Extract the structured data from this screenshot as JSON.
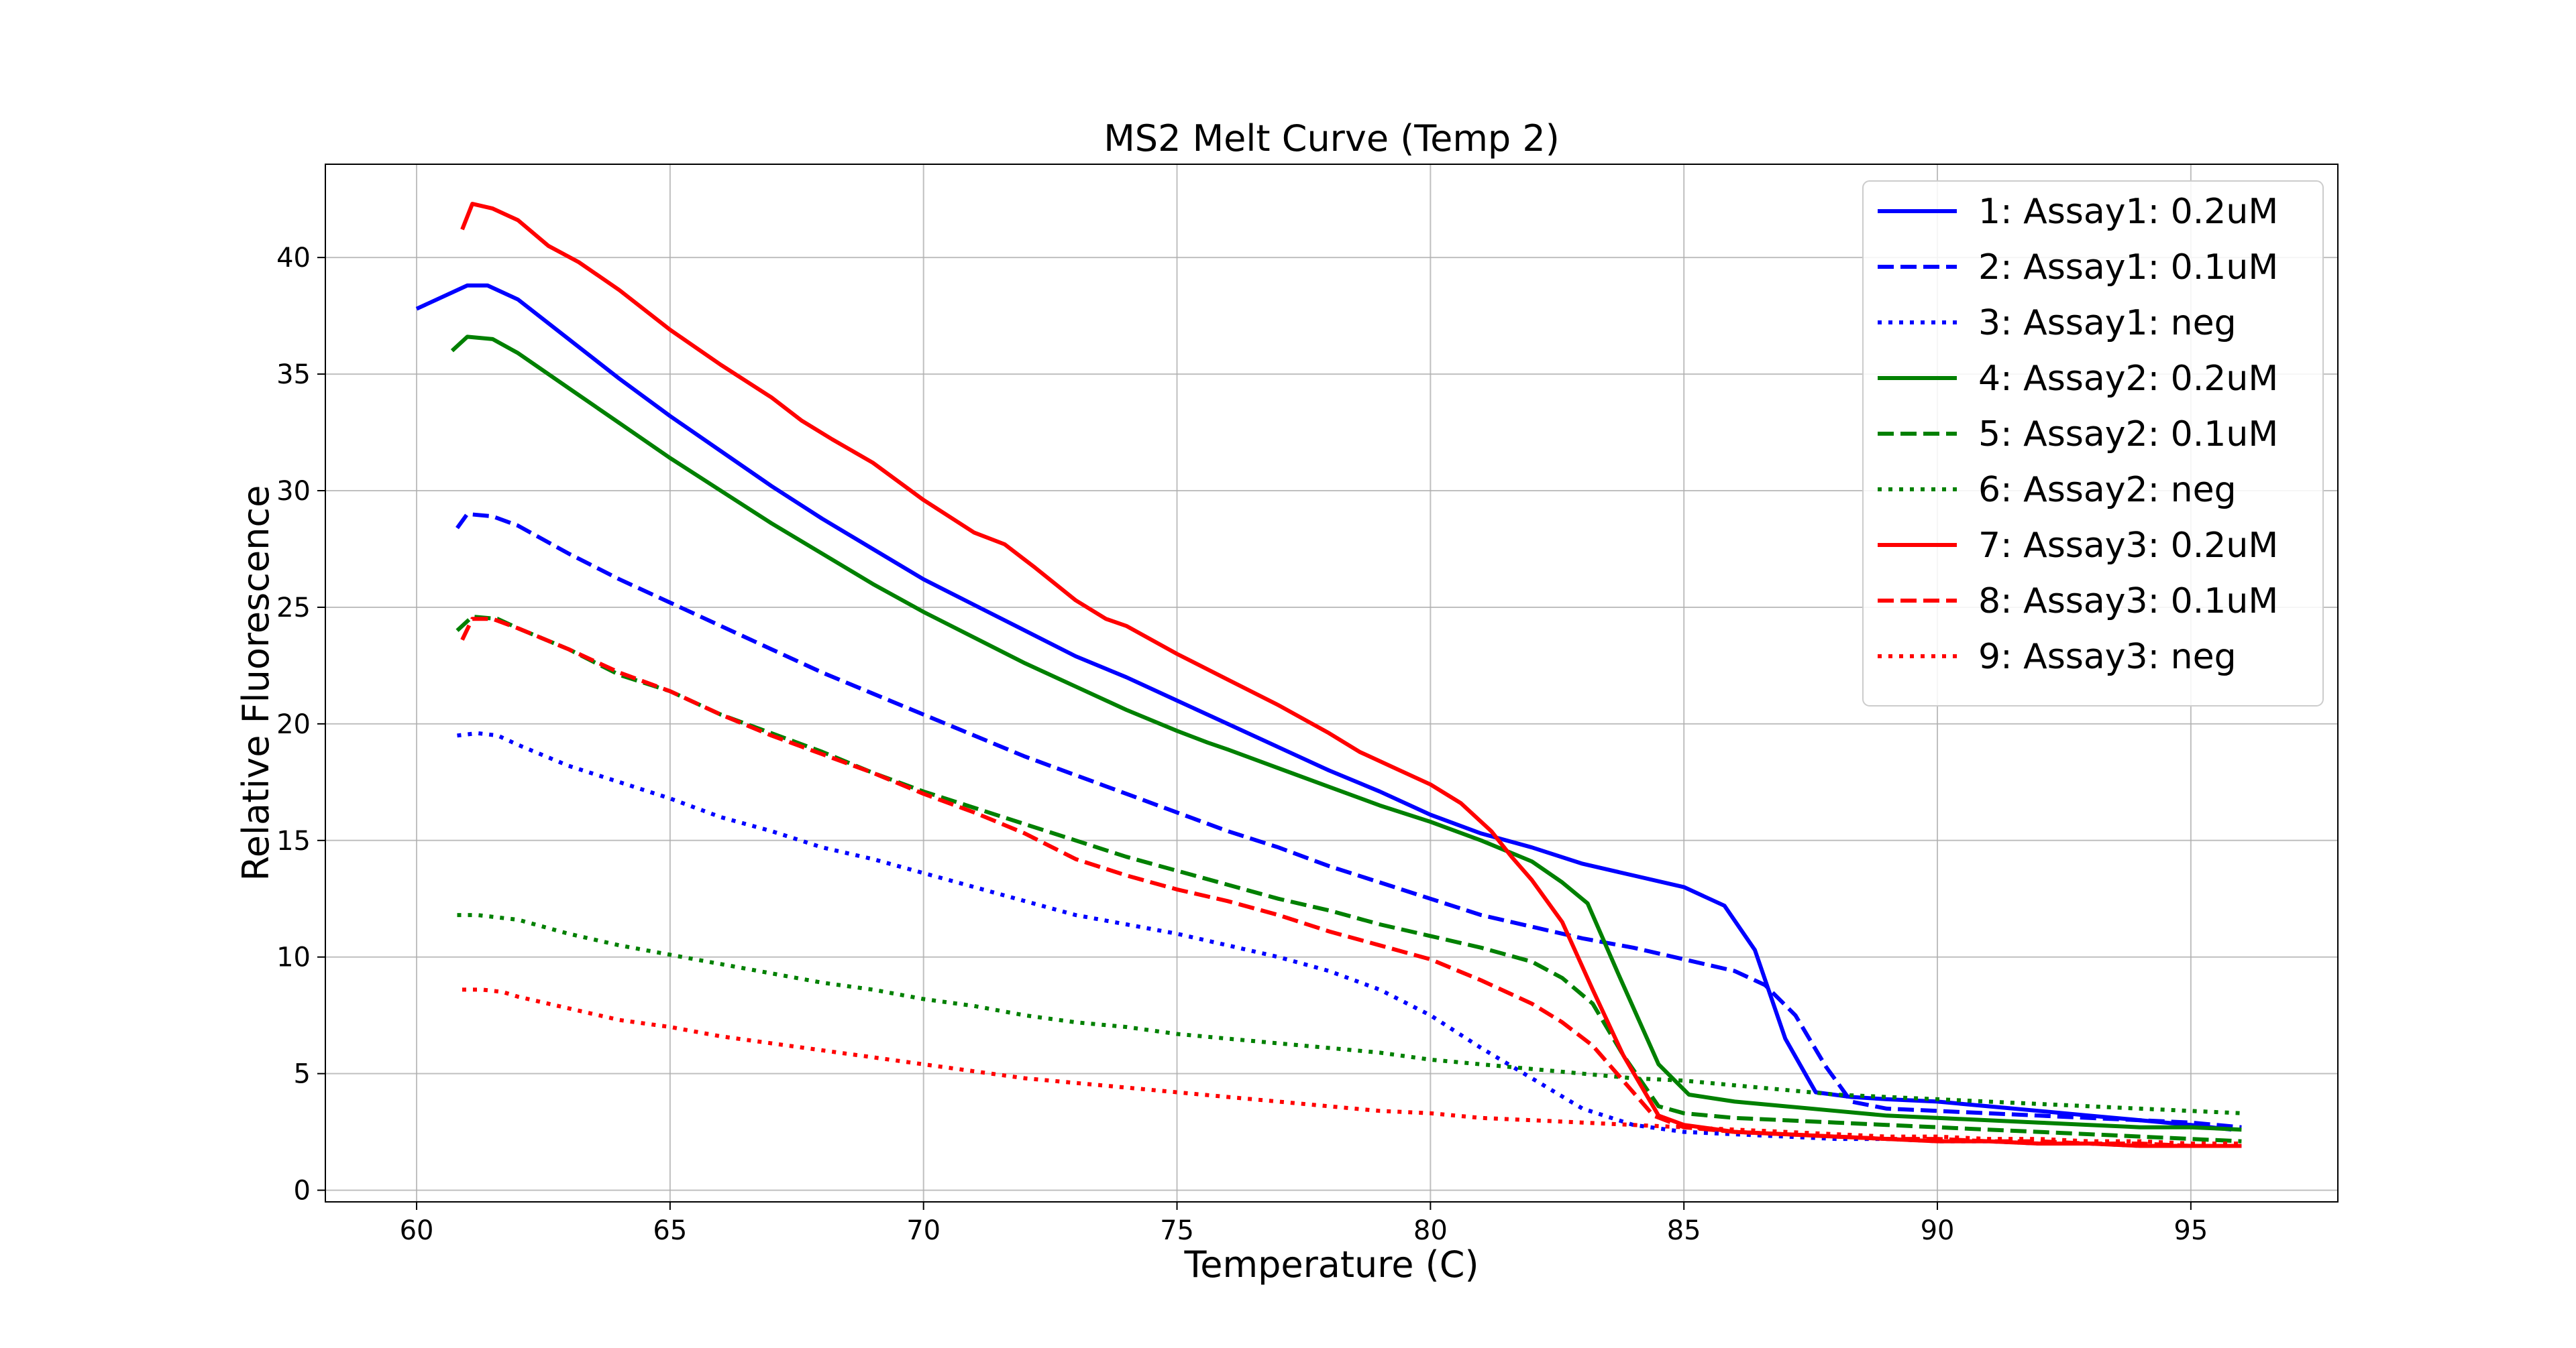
{
  "chart_data": {
    "type": "line",
    "title": "MS2 Melt Curve (Temp 2)",
    "xlabel": "Temperature (C)",
    "ylabel": "Relative Fluorescence",
    "xlim": [
      58.2,
      97.9
    ],
    "ylim": [
      -0.5,
      44.0
    ],
    "xticks": [
      60,
      65,
      70,
      75,
      80,
      85,
      90,
      95
    ],
    "yticks": [
      0,
      5,
      10,
      15,
      20,
      25,
      30,
      35,
      40
    ],
    "grid": true,
    "legend_position": "top-right",
    "series": [
      {
        "name": "1: Assay1: 0.2uM",
        "color": "#0000ff",
        "dash": "solid",
        "x": [
          60.0,
          61.0,
          61.4,
          62.0,
          63.0,
          64.0,
          65.0,
          66.0,
          67.0,
          68.0,
          69.0,
          70.0,
          71.0,
          72.0,
          73.0,
          74.0,
          75.0,
          76.0,
          77.0,
          78.0,
          79.0,
          80.0,
          81.0,
          82.0,
          83.0,
          84.0,
          85.0,
          85.8,
          86.4,
          87.0,
          87.6,
          88.3,
          89.0,
          90.0,
          91.0,
          92.0,
          93.0,
          94.0,
          95.0,
          95.8
        ],
        "y": [
          37.8,
          38.8,
          38.8,
          38.2,
          36.5,
          34.8,
          33.2,
          31.7,
          30.2,
          28.8,
          27.5,
          26.2,
          25.1,
          24.0,
          22.9,
          22.0,
          21.0,
          20.0,
          19.0,
          18.0,
          17.1,
          16.1,
          15.3,
          14.7,
          14.0,
          13.5,
          13.0,
          12.2,
          10.3,
          6.5,
          4.2,
          4.0,
          3.9,
          3.8,
          3.6,
          3.4,
          3.2,
          3.0,
          2.8,
          2.6
        ]
      },
      {
        "name": "2: Assay1: 0.1uM",
        "color": "#0000ff",
        "dash": "dashed",
        "x": [
          60.8,
          61.0,
          61.5,
          62.0,
          63.0,
          64.0,
          65.0,
          66.0,
          67.0,
          68.0,
          69.0,
          70.0,
          71.0,
          72.0,
          73.0,
          74.0,
          75.0,
          76.0,
          77.0,
          78.0,
          79.0,
          80.0,
          81.0,
          82.0,
          83.0,
          84.0,
          85.0,
          86.0,
          86.6,
          87.2,
          87.8,
          88.3,
          89.0,
          90.0,
          91.0,
          92.0,
          93.0,
          94.0,
          95.0,
          96.0
        ],
        "y": [
          28.4,
          29.0,
          28.9,
          28.5,
          27.3,
          26.2,
          25.2,
          24.2,
          23.2,
          22.2,
          21.3,
          20.4,
          19.5,
          18.6,
          17.8,
          17.0,
          16.2,
          15.4,
          14.7,
          13.9,
          13.2,
          12.5,
          11.8,
          11.3,
          10.8,
          10.4,
          9.9,
          9.4,
          8.8,
          7.5,
          5.3,
          3.8,
          3.5,
          3.4,
          3.3,
          3.2,
          3.1,
          3.0,
          2.9,
          2.7
        ]
      },
      {
        "name": "3: Assay1: neg",
        "color": "#0000ff",
        "dash": "dotted",
        "x": [
          60.8,
          61.2,
          61.6,
          62.0,
          63.0,
          64.0,
          65.0,
          66.0,
          67.0,
          68.0,
          69.0,
          70.0,
          71.0,
          72.0,
          73.0,
          74.0,
          75.0,
          76.0,
          77.0,
          78.0,
          79.0,
          80.0,
          81.0,
          82.0,
          83.0,
          84.0,
          85.0,
          86.0,
          87.0,
          88.0,
          89.0,
          90.0,
          91.0,
          92.0,
          93.0,
          94.0,
          95.0,
          96.0
        ],
        "y": [
          19.5,
          19.6,
          19.5,
          19.1,
          18.2,
          17.5,
          16.8,
          16.0,
          15.4,
          14.7,
          14.2,
          13.6,
          13.0,
          12.4,
          11.8,
          11.4,
          11.0,
          10.5,
          10.0,
          9.4,
          8.6,
          7.5,
          6.1,
          4.8,
          3.5,
          2.8,
          2.5,
          2.4,
          2.3,
          2.2,
          2.2,
          2.1,
          2.1,
          2.0,
          2.0,
          1.9,
          1.9,
          1.9
        ]
      },
      {
        "name": "4: Assay2: 0.2uM",
        "color": "#008000",
        "dash": "solid",
        "x": [
          60.7,
          61.0,
          61.5,
          62.0,
          63.0,
          64.0,
          65.0,
          66.0,
          67.0,
          68.0,
          69.0,
          70.0,
          71.0,
          72.0,
          73.0,
          74.0,
          75.0,
          75.6,
          76.0,
          77.0,
          78.0,
          79.0,
          80.0,
          81.0,
          82.0,
          82.6,
          83.1,
          83.7,
          84.5,
          85.1,
          86.0,
          87.0,
          88.0,
          89.0,
          90.0,
          91.0,
          92.0,
          93.0,
          94.0,
          95.0,
          96.0
        ],
        "y": [
          36.0,
          36.6,
          36.5,
          35.9,
          34.4,
          32.9,
          31.4,
          30.0,
          28.6,
          27.3,
          26.0,
          24.8,
          23.7,
          22.6,
          21.6,
          20.6,
          19.7,
          19.2,
          18.9,
          18.1,
          17.3,
          16.5,
          15.8,
          15.0,
          14.1,
          13.2,
          12.3,
          9.3,
          5.4,
          4.1,
          3.8,
          3.6,
          3.4,
          3.2,
          3.1,
          3.0,
          2.9,
          2.8,
          2.7,
          2.7,
          2.6
        ]
      },
      {
        "name": "5: Assay2: 0.1uM",
        "color": "#008000",
        "dash": "dashed",
        "x": [
          60.8,
          61.1,
          61.6,
          62.0,
          63.0,
          64.0,
          65.0,
          66.0,
          67.0,
          68.0,
          69.0,
          70.0,
          71.0,
          72.0,
          73.0,
          74.0,
          75.0,
          76.0,
          77.0,
          78.0,
          79.0,
          80.0,
          81.0,
          82.0,
          82.6,
          83.2,
          83.8,
          84.5,
          85.0,
          86.0,
          87.0,
          88.0,
          89.0,
          90.0,
          91.0,
          92.0,
          93.0,
          94.0,
          95.0,
          96.0
        ],
        "y": [
          24.0,
          24.6,
          24.5,
          24.1,
          23.2,
          22.1,
          21.4,
          20.4,
          19.6,
          18.8,
          17.9,
          17.1,
          16.4,
          15.7,
          15.0,
          14.3,
          13.7,
          13.1,
          12.5,
          12.0,
          11.4,
          10.9,
          10.4,
          9.8,
          9.1,
          8.0,
          5.8,
          3.6,
          3.3,
          3.1,
          3.0,
          2.9,
          2.8,
          2.7,
          2.6,
          2.5,
          2.4,
          2.3,
          2.2,
          2.1
        ]
      },
      {
        "name": "6: Assay2: neg",
        "color": "#008000",
        "dash": "dotted",
        "x": [
          60.8,
          61.2,
          61.6,
          62.0,
          63.0,
          64.0,
          65.0,
          66.0,
          67.0,
          68.0,
          69.0,
          70.0,
          71.0,
          72.0,
          73.0,
          74.0,
          75.0,
          76.0,
          77.0,
          78.0,
          79.0,
          80.0,
          81.0,
          82.0,
          83.0,
          84.0,
          85.0,
          86.0,
          87.0,
          88.0,
          89.0,
          90.0,
          91.0,
          92.0,
          93.0,
          94.0,
          95.0,
          96.0
        ],
        "y": [
          11.8,
          11.8,
          11.7,
          11.6,
          11.0,
          10.5,
          10.1,
          9.7,
          9.3,
          8.9,
          8.6,
          8.2,
          7.9,
          7.5,
          7.2,
          7.0,
          6.7,
          6.5,
          6.3,
          6.1,
          5.9,
          5.6,
          5.4,
          5.2,
          5.0,
          4.8,
          4.7,
          4.5,
          4.3,
          4.1,
          4.0,
          3.9,
          3.8,
          3.7,
          3.6,
          3.5,
          3.4,
          3.3
        ]
      },
      {
        "name": "7: Assay3: 0.2uM",
        "color": "#ff0000",
        "dash": "solid",
        "x": [
          60.9,
          61.1,
          61.5,
          62.0,
          62.6,
          63.2,
          64.0,
          65.0,
          66.0,
          67.0,
          67.6,
          68.2,
          69.0,
          70.0,
          71.0,
          71.6,
          72.2,
          73.0,
          73.6,
          74.0,
          75.0,
          76.0,
          77.0,
          78.0,
          78.6,
          79.2,
          80.0,
          80.6,
          81.2,
          81.6,
          82.0,
          82.6,
          83.2,
          83.8,
          84.5,
          85.0,
          86.0,
          87.0,
          88.0,
          89.0,
          90.0,
          91.0,
          92.0,
          93.0,
          94.0,
          95.0,
          96.0
        ],
        "y": [
          41.2,
          42.3,
          42.1,
          41.6,
          40.5,
          39.8,
          38.6,
          36.9,
          35.4,
          34.0,
          33.0,
          32.2,
          31.2,
          29.6,
          28.2,
          27.7,
          26.7,
          25.3,
          24.5,
          24.2,
          23.0,
          21.9,
          20.8,
          19.6,
          18.8,
          18.2,
          17.4,
          16.6,
          15.4,
          14.3,
          13.3,
          11.5,
          8.6,
          5.8,
          3.2,
          2.8,
          2.5,
          2.4,
          2.3,
          2.2,
          2.1,
          2.1,
          2.0,
          2.0,
          1.9,
          1.9,
          1.9
        ]
      },
      {
        "name": "8: Assay3: 0.1uM",
        "color": "#ff0000",
        "dash": "dashed",
        "x": [
          60.9,
          61.1,
          61.5,
          62.0,
          63.0,
          64.0,
          65.0,
          66.0,
          67.0,
          68.0,
          69.0,
          70.0,
          71.0,
          72.0,
          73.0,
          74.0,
          75.0,
          76.0,
          77.0,
          78.0,
          79.0,
          80.0,
          81.0,
          82.0,
          82.6,
          83.2,
          83.8,
          84.4,
          85.0,
          86.0,
          87.0,
          88.0,
          89.0,
          90.0,
          91.0,
          92.0,
          93.0,
          94.0,
          95.0,
          96.0
        ],
        "y": [
          23.6,
          24.5,
          24.5,
          24.1,
          23.2,
          22.2,
          21.4,
          20.4,
          19.5,
          18.7,
          17.9,
          17.0,
          16.2,
          15.3,
          14.2,
          13.5,
          12.9,
          12.4,
          11.8,
          11.1,
          10.5,
          9.9,
          9.0,
          8.0,
          7.2,
          6.2,
          4.7,
          3.2,
          2.7,
          2.5,
          2.4,
          2.3,
          2.2,
          2.2,
          2.1,
          2.1,
          2.0,
          2.0,
          1.9,
          1.9
        ]
      },
      {
        "name": "9: Assay3: neg",
        "color": "#ff0000",
        "dash": "dotted",
        "x": [
          60.9,
          61.3,
          61.7,
          62.0,
          63.0,
          64.0,
          65.0,
          66.0,
          67.0,
          68.0,
          69.0,
          70.0,
          71.0,
          72.0,
          73.0,
          74.0,
          75.0,
          76.0,
          77.0,
          78.0,
          79.0,
          80.0,
          81.0,
          82.0,
          83.0,
          84.0,
          85.0,
          86.0,
          87.0,
          88.0,
          89.0,
          90.0,
          91.0,
          92.0,
          93.0,
          94.0,
          95.0,
          96.0
        ],
        "y": [
          8.6,
          8.6,
          8.5,
          8.3,
          7.8,
          7.3,
          7.0,
          6.6,
          6.3,
          6.0,
          5.7,
          5.4,
          5.1,
          4.8,
          4.6,
          4.4,
          4.2,
          4.0,
          3.8,
          3.6,
          3.4,
          3.3,
          3.1,
          3.0,
          2.9,
          2.8,
          2.7,
          2.6,
          2.5,
          2.4,
          2.3,
          2.3,
          2.2,
          2.2,
          2.1,
          2.1,
          2.0,
          2.0
        ]
      }
    ]
  }
}
